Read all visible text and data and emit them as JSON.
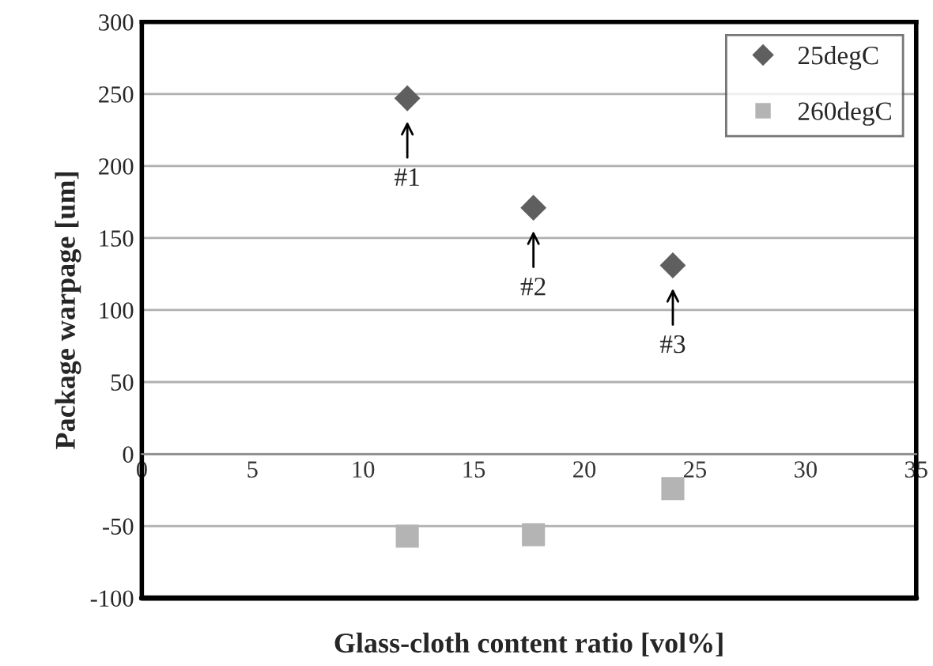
{
  "chart_data": {
    "type": "scatter",
    "xlabel": "Glass-cloth content ratio [vol%]",
    "ylabel": "Package warpage [um]",
    "series": [
      {
        "name": "25degC",
        "color": "#5f5f5f",
        "marker": "diamond",
        "x": [
          12,
          17.7,
          24
        ],
        "values": [
          247,
          171,
          131
        ]
      },
      {
        "name": "260degC",
        "color": "#b4b4b4",
        "marker": "square",
        "x": [
          12,
          17.7,
          24
        ],
        "values": [
          -57,
          -56,
          -24
        ]
      }
    ],
    "annotations": [
      {
        "text": "#1",
        "x": 12,
        "y": 247
      },
      {
        "text": "#2",
        "x": 17.7,
        "y": 171
      },
      {
        "text": "#3",
        "x": 24,
        "y": 131
      }
    ],
    "xlim": [
      0,
      35
    ],
    "xticks": [
      0,
      5,
      10,
      15,
      20,
      25,
      30,
      35
    ],
    "ylim": [
      -100,
      300
    ],
    "yticks": [
      -100,
      -50,
      0,
      50,
      100,
      150,
      200,
      250,
      300
    ],
    "grid": "y",
    "legend": "top right"
  }
}
